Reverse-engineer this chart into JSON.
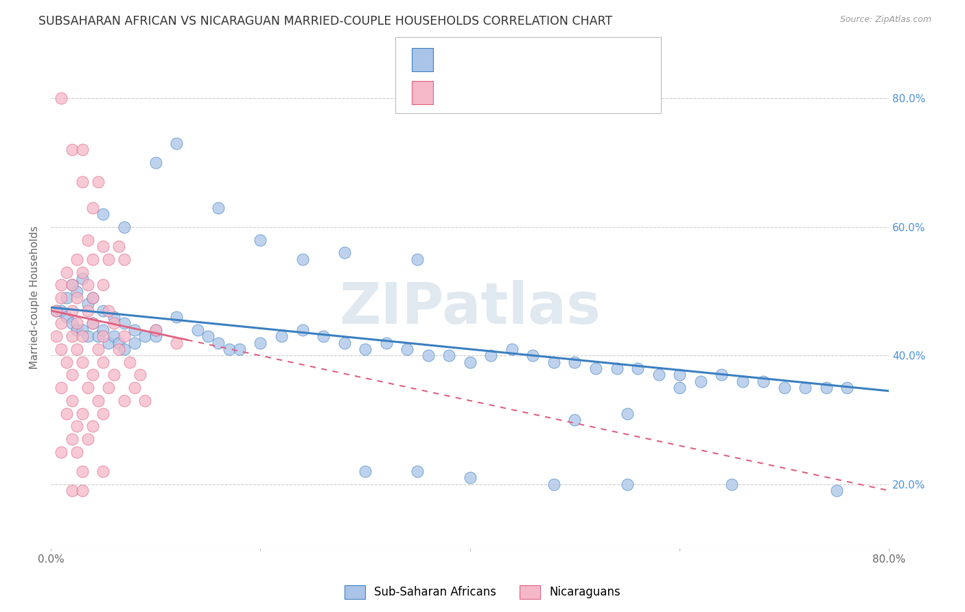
{
  "title": "SUBSAHARAN AFRICAN VS NICARAGUAN MARRIED-COUPLE HOUSEHOLDS CORRELATION CHART",
  "source": "Source: ZipAtlas.com",
  "ylabel": "Married-couple Households",
  "blue_color": "#aac4e8",
  "pink_color": "#f5b8c8",
  "blue_line_color": "#3a7fc1",
  "pink_line_color": "#e06080",
  "watermark": "ZIPatlas",
  "blue_scatter": [
    [
      0.5,
      47
    ],
    [
      1.0,
      47
    ],
    [
      1.5,
      46
    ],
    [
      2.0,
      45
    ],
    [
      2.5,
      44
    ],
    [
      3.0,
      44
    ],
    [
      3.5,
      43
    ],
    [
      4.0,
      45
    ],
    [
      4.5,
      43
    ],
    [
      5.0,
      44
    ],
    [
      5.5,
      42
    ],
    [
      6.0,
      43
    ],
    [
      6.5,
      42
    ],
    [
      7.0,
      41
    ],
    [
      8.0,
      42
    ],
    [
      9.0,
      43
    ],
    [
      10.0,
      43
    ],
    [
      1.5,
      49
    ],
    [
      2.0,
      51
    ],
    [
      2.5,
      50
    ],
    [
      3.0,
      52
    ],
    [
      3.5,
      48
    ],
    [
      4.0,
      49
    ],
    [
      5.0,
      47
    ],
    [
      6.0,
      46
    ],
    [
      7.0,
      45
    ],
    [
      8.0,
      44
    ],
    [
      10.0,
      44
    ],
    [
      12.0,
      46
    ],
    [
      14.0,
      44
    ],
    [
      15.0,
      43
    ],
    [
      16.0,
      42
    ],
    [
      17.0,
      41
    ],
    [
      18.0,
      41
    ],
    [
      20.0,
      42
    ],
    [
      22.0,
      43
    ],
    [
      24.0,
      44
    ],
    [
      26.0,
      43
    ],
    [
      28.0,
      42
    ],
    [
      30.0,
      41
    ],
    [
      32.0,
      42
    ],
    [
      34.0,
      41
    ],
    [
      36.0,
      40
    ],
    [
      38.0,
      40
    ],
    [
      40.0,
      39
    ],
    [
      42.0,
      40
    ],
    [
      44.0,
      41
    ],
    [
      46.0,
      40
    ],
    [
      48.0,
      39
    ],
    [
      50.0,
      39
    ],
    [
      52.0,
      38
    ],
    [
      54.0,
      38
    ],
    [
      56.0,
      38
    ],
    [
      58.0,
      37
    ],
    [
      60.0,
      37
    ],
    [
      62.0,
      36
    ],
    [
      64.0,
      37
    ],
    [
      66.0,
      36
    ],
    [
      68.0,
      36
    ],
    [
      70.0,
      35
    ],
    [
      72.0,
      35
    ],
    [
      74.0,
      35
    ],
    [
      76.0,
      35
    ],
    [
      10.0,
      70
    ],
    [
      12.0,
      73
    ],
    [
      16.0,
      63
    ],
    [
      20.0,
      58
    ],
    [
      24.0,
      55
    ],
    [
      28.0,
      56
    ],
    [
      35.0,
      55
    ],
    [
      5.0,
      62
    ],
    [
      7.0,
      60
    ],
    [
      30.0,
      22
    ],
    [
      35.0,
      22
    ],
    [
      40.0,
      21
    ],
    [
      48.0,
      20
    ],
    [
      55.0,
      20
    ],
    [
      65.0,
      20
    ],
    [
      75.0,
      19
    ],
    [
      50.0,
      30
    ],
    [
      55.0,
      31
    ],
    [
      60.0,
      35
    ]
  ],
  "pink_scatter": [
    [
      1.0,
      80
    ],
    [
      2.0,
      72
    ],
    [
      3.0,
      72
    ],
    [
      3.0,
      67
    ],
    [
      4.5,
      67
    ],
    [
      4.0,
      63
    ],
    [
      3.5,
      58
    ],
    [
      5.0,
      57
    ],
    [
      6.5,
      57
    ],
    [
      2.5,
      55
    ],
    [
      4.0,
      55
    ],
    [
      5.5,
      55
    ],
    [
      7.0,
      55
    ],
    [
      1.5,
      53
    ],
    [
      3.0,
      53
    ],
    [
      1.0,
      51
    ],
    [
      2.0,
      51
    ],
    [
      3.5,
      51
    ],
    [
      5.0,
      51
    ],
    [
      1.0,
      49
    ],
    [
      2.5,
      49
    ],
    [
      4.0,
      49
    ],
    [
      0.5,
      47
    ],
    [
      2.0,
      47
    ],
    [
      3.5,
      47
    ],
    [
      5.5,
      47
    ],
    [
      1.0,
      45
    ],
    [
      2.5,
      45
    ],
    [
      4.0,
      45
    ],
    [
      6.0,
      45
    ],
    [
      0.5,
      43
    ],
    [
      2.0,
      43
    ],
    [
      3.0,
      43
    ],
    [
      5.0,
      43
    ],
    [
      7.0,
      43
    ],
    [
      1.0,
      41
    ],
    [
      2.5,
      41
    ],
    [
      4.5,
      41
    ],
    [
      6.5,
      41
    ],
    [
      1.5,
      39
    ],
    [
      3.0,
      39
    ],
    [
      5.0,
      39
    ],
    [
      7.5,
      39
    ],
    [
      2.0,
      37
    ],
    [
      4.0,
      37
    ],
    [
      6.0,
      37
    ],
    [
      8.5,
      37
    ],
    [
      1.0,
      35
    ],
    [
      3.5,
      35
    ],
    [
      5.5,
      35
    ],
    [
      2.0,
      33
    ],
    [
      4.5,
      33
    ],
    [
      7.0,
      33
    ],
    [
      1.5,
      31
    ],
    [
      3.0,
      31
    ],
    [
      5.0,
      31
    ],
    [
      2.5,
      29
    ],
    [
      4.0,
      29
    ],
    [
      2.0,
      27
    ],
    [
      3.5,
      27
    ],
    [
      1.0,
      25
    ],
    [
      2.5,
      25
    ],
    [
      3.0,
      22
    ],
    [
      5.0,
      22
    ],
    [
      2.0,
      19
    ],
    [
      3.0,
      19
    ],
    [
      10.0,
      44
    ],
    [
      12.0,
      42
    ],
    [
      8.0,
      35
    ],
    [
      9.0,
      33
    ]
  ],
  "blue_trend": [
    0,
    80,
    47.5,
    34.5
  ],
  "pink_trend": [
    0,
    80,
    47.0,
    19.0
  ],
  "pink_trend_solid_end": 13,
  "xlim": [
    0,
    80
  ],
  "ylim": [
    10,
    88
  ],
  "ytick_positions": [
    20,
    40,
    60,
    80
  ],
  "xtick_positions": [
    0,
    20,
    40,
    60,
    80
  ],
  "background_color": "#ffffff",
  "grid_color": "#cccccc",
  "legend_R_color": "#4a90d9",
  "legend_text_color": "#333333"
}
